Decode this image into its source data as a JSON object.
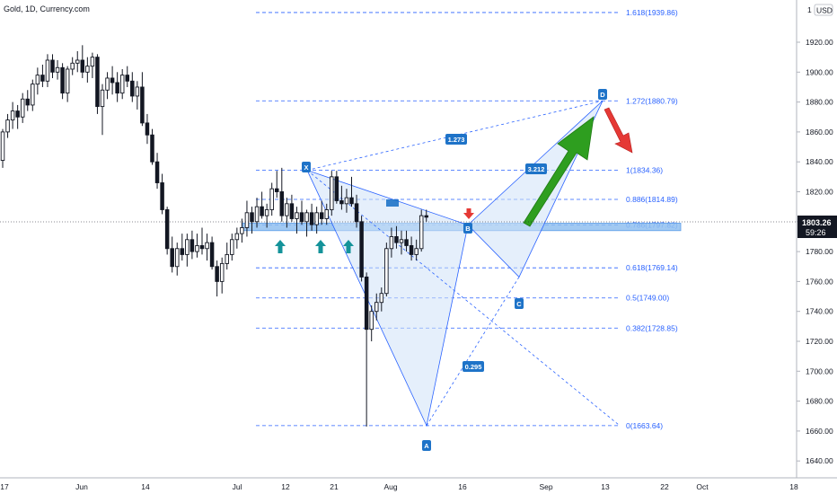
{
  "header": {
    "title": "Gold, 1D, Currency.com"
  },
  "colors": {
    "candle": "#131722",
    "fib": "#2962ff",
    "pattern_fill": "#cfe2f7",
    "zone": "#90bff0",
    "bull_arrow": "#2e9e1f",
    "bear_arrow": "#e53935",
    "teal_arrow": "#14939a",
    "red_marker": "#e53935"
  },
  "price_axis": {
    "currency": "USD",
    "ticks": [
      "1920.00",
      "1900.00",
      "1880.00",
      "1860.00",
      "1840.00",
      "1820.00",
      "1800.00",
      "1780.00",
      "1760.00",
      "1740.00",
      "1720.00",
      "1700.00",
      "1680.00",
      "1660.00",
      "1640.00"
    ],
    "last_price": "1803.26",
    "countdown": "59:26",
    "top_label": "1"
  },
  "time_axis": {
    "labels": [
      "17",
      "Jun",
      "14",
      "Jul",
      "12",
      "21",
      "Aug",
      "16",
      "Sep",
      "13",
      "22",
      "Oct",
      "18"
    ]
  },
  "chart_data": {
    "type": "candlestick",
    "title": "Gold, 1D, Currency.com",
    "y_axis_unit": "USD",
    "ylim": [
      1636,
      1948
    ],
    "last_price": 1803.26,
    "fib_levels": [
      {
        "ratio": "1.618",
        "price": 1939.86,
        "label": "1.618(1939.86)"
      },
      {
        "ratio": "1.272",
        "price": 1880.79,
        "label": "1.272(1880.79)"
      },
      {
        "ratio": "1",
        "price": 1834.36,
        "label": "1(1834.36)"
      },
      {
        "ratio": "0.886",
        "price": 1814.89,
        "label": "0.886(1814.89)"
      },
      {
        "ratio": "0.786",
        "price": 1797.82,
        "label": "0.786(1797.82)"
      },
      {
        "ratio": "0.618",
        "price": 1769.14,
        "label": "0.618(1769.14)"
      },
      {
        "ratio": "0.5",
        "price": 1749.0,
        "label": "0.5(1749.00)"
      },
      {
        "ratio": "0.382",
        "price": 1728.85,
        "label": "0.382(1728.85)"
      },
      {
        "ratio": "0",
        "price": 1663.64,
        "label": "0(1663.64)"
      }
    ],
    "pattern_points": [
      {
        "label": "X",
        "date": "Jul 15",
        "price": 1834.4
      },
      {
        "label": "A",
        "date": "Aug 9",
        "price": 1663.6
      },
      {
        "label": "B",
        "date": "Aug 17",
        "price": 1797.8
      },
      {
        "label": "C",
        "date": "Aug 26",
        "price": 1760
      },
      {
        "label": "D",
        "date": "Sep 13",
        "price": 1880.8
      }
    ],
    "pattern_ratios": [
      "1.273",
      "3.212",
      "0.295"
    ],
    "support_zone": {
      "low": 1794,
      "high": 1799
    },
    "candles": [
      [
        1841,
        1862,
        1836,
        1860
      ],
      [
        1860,
        1872,
        1856,
        1868
      ],
      [
        1868,
        1880,
        1862,
        1874
      ],
      [
        1874,
        1878,
        1862,
        1870
      ],
      [
        1870,
        1886,
        1866,
        1882
      ],
      [
        1882,
        1888,
        1874,
        1878
      ],
      [
        1878,
        1895,
        1874,
        1892
      ],
      [
        1892,
        1903,
        1885,
        1898
      ],
      [
        1898,
        1905,
        1890,
        1894
      ],
      [
        1894,
        1912,
        1890,
        1908
      ],
      [
        1908,
        1912,
        1896,
        1900
      ],
      [
        1900,
        1908,
        1895,
        1903
      ],
      [
        1903,
        1906,
        1882,
        1886
      ],
      [
        1886,
        1904,
        1880,
        1902
      ],
      [
        1902,
        1910,
        1898,
        1906
      ],
      [
        1906,
        1914,
        1900,
        1908
      ],
      [
        1908,
        1918,
        1896,
        1900
      ],
      [
        1900,
        1910,
        1893,
        1904
      ],
      [
        1904,
        1913,
        1896,
        1910
      ],
      [
        1910,
        1912,
        1872,
        1877
      ],
      [
        1877,
        1892,
        1858,
        1888
      ],
      [
        1888,
        1900,
        1882,
        1896
      ],
      [
        1896,
        1904,
        1885,
        1893
      ],
      [
        1893,
        1900,
        1880,
        1886
      ],
      [
        1886,
        1902,
        1882,
        1898
      ],
      [
        1898,
        1904,
        1890,
        1894
      ],
      [
        1894,
        1900,
        1880,
        1884
      ],
      [
        1884,
        1894,
        1875,
        1890
      ],
      [
        1890,
        1900,
        1864,
        1866
      ],
      [
        1866,
        1872,
        1852,
        1858
      ],
      [
        1858,
        1862,
        1838,
        1840
      ],
      [
        1840,
        1846,
        1822,
        1826
      ],
      [
        1826,
        1832,
        1805,
        1808
      ],
      [
        1808,
        1810,
        1778,
        1782
      ],
      [
        1782,
        1790,
        1766,
        1770
      ],
      [
        1770,
        1786,
        1764,
        1782
      ],
      [
        1782,
        1792,
        1774,
        1778
      ],
      [
        1778,
        1792,
        1770,
        1788
      ],
      [
        1788,
        1794,
        1775,
        1780
      ],
      [
        1780,
        1792,
        1776,
        1784
      ],
      [
        1784,
        1796,
        1778,
        1782
      ],
      [
        1782,
        1792,
        1774,
        1786
      ],
      [
        1786,
        1790,
        1768,
        1770
      ],
      [
        1770,
        1774,
        1750,
        1760
      ],
      [
        1760,
        1776,
        1752,
        1772
      ],
      [
        1772,
        1786,
        1768,
        1778
      ],
      [
        1778,
        1792,
        1774,
        1788
      ],
      [
        1788,
        1796,
        1782,
        1792
      ],
      [
        1792,
        1802,
        1786,
        1796
      ],
      [
        1796,
        1814,
        1790,
        1806
      ],
      [
        1806,
        1810,
        1792,
        1800
      ],
      [
        1800,
        1816,
        1796,
        1810
      ],
      [
        1810,
        1820,
        1802,
        1804
      ],
      [
        1804,
        1812,
        1796,
        1808
      ],
      [
        1808,
        1826,
        1804,
        1822
      ],
      [
        1822,
        1834,
        1816,
        1820
      ],
      [
        1820,
        1836,
        1800,
        1804
      ],
      [
        1804,
        1816,
        1796,
        1812
      ],
      [
        1812,
        1818,
        1800,
        1802
      ],
      [
        1802,
        1810,
        1792,
        1806
      ],
      [
        1806,
        1814,
        1798,
        1800
      ],
      [
        1800,
        1808,
        1790,
        1806
      ],
      [
        1806,
        1812,
        1794,
        1798
      ],
      [
        1798,
        1810,
        1792,
        1806
      ],
      [
        1806,
        1814,
        1798,
        1802
      ],
      [
        1802,
        1812,
        1798,
        1808
      ],
      [
        1808,
        1834,
        1804,
        1830
      ],
      [
        1830,
        1834,
        1812,
        1814
      ],
      [
        1814,
        1824,
        1808,
        1812
      ],
      [
        1812,
        1822,
        1806,
        1816
      ],
      [
        1816,
        1830,
        1810,
        1812
      ],
      [
        1812,
        1818,
        1796,
        1800
      ],
      [
        1800,
        1804,
        1760,
        1763
      ],
      [
        1763,
        1766,
        1663,
        1728
      ],
      [
        1728,
        1744,
        1720,
        1740
      ],
      [
        1740,
        1752,
        1734,
        1746
      ],
      [
        1746,
        1756,
        1740,
        1752
      ],
      [
        1752,
        1786,
        1750,
        1782
      ],
      [
        1782,
        1796,
        1776,
        1790
      ],
      [
        1790,
        1797,
        1782,
        1786
      ],
      [
        1786,
        1794,
        1778,
        1788
      ],
      [
        1788,
        1794,
        1780,
        1784
      ],
      [
        1784,
        1790,
        1774,
        1778
      ],
      [
        1778,
        1788,
        1774,
        1782
      ],
      [
        1782,
        1808,
        1780,
        1804
      ],
      [
        1804,
        1808,
        1800,
        1803
      ]
    ]
  }
}
